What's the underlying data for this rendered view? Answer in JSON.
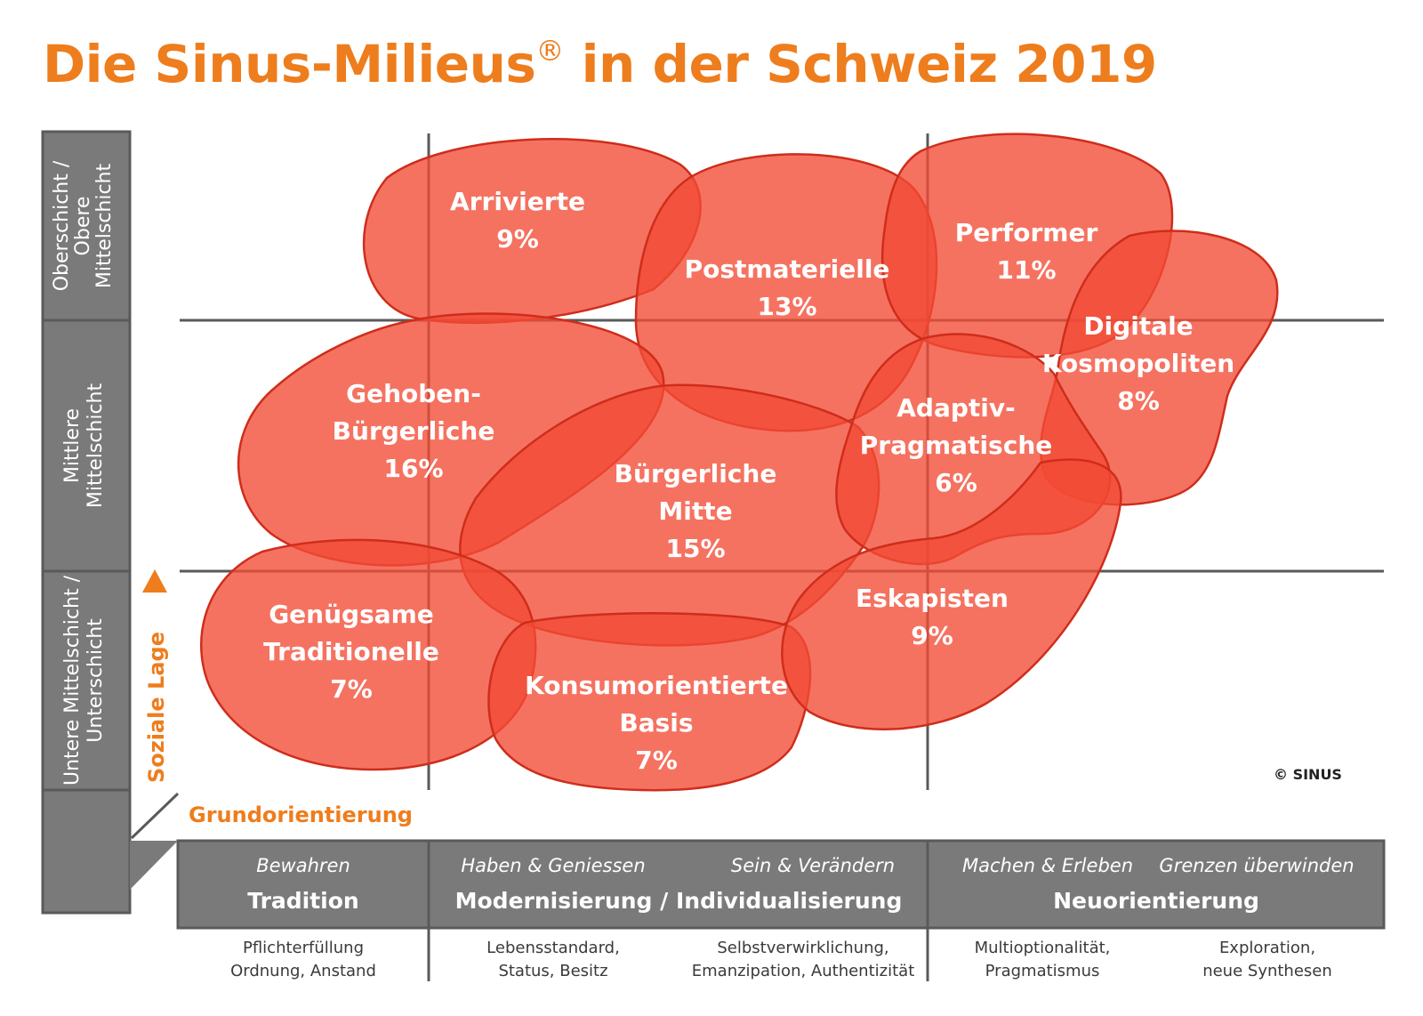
{
  "title": {
    "main": "Die Sinus-Milieus",
    "reg": "®",
    "rest": " in der Schweiz 2019"
  },
  "colors": {
    "accent": "#ee7d1d",
    "blob": "#f24a34",
    "panel": "#7a7a7a",
    "grid": "#5a5a5a"
  },
  "y_axis": {
    "label": "Soziale Lage",
    "levels": [
      {
        "lines": [
          "Oberschicht /",
          "Obere",
          "Mittelschicht"
        ]
      },
      {
        "lines": [
          "Mittlere",
          "Mittelschicht"
        ]
      },
      {
        "lines": [
          "Untere Mittelschicht /",
          "Unterschicht"
        ]
      }
    ]
  },
  "x_axis": {
    "label": "Grundorientierung",
    "sections": [
      {
        "name": "Tradition",
        "subs": [
          "Bewahren"
        ]
      },
      {
        "name": "Modernisierung / Individualisierung",
        "subs": [
          "Haben & Geniessen",
          "Sein & Verändern"
        ]
      },
      {
        "name": "Neuorientierung",
        "subs": [
          "Machen & Erleben",
          "Grenzen überwinden"
        ]
      }
    ],
    "values": [
      [
        "Pflichterfüllung",
        "Ordnung, Anstand"
      ],
      [
        "Lebensstandard,",
        "Status, Besitz"
      ],
      [
        "Selbstverwirklichung,",
        "Emanzipation, Authentizität"
      ],
      [
        "Multioptionalität,",
        "Pragmatismus"
      ],
      [
        "Exploration,",
        "neue Synthesen"
      ]
    ]
  },
  "milieus": [
    {
      "id": "arrivierte",
      "lines": [
        "Arrivierte"
      ],
      "share": "9%"
    },
    {
      "id": "postmaterielle",
      "lines": [
        "Postmaterielle"
      ],
      "share": "13%"
    },
    {
      "id": "performer",
      "lines": [
        "Performer"
      ],
      "share": "11%"
    },
    {
      "id": "digitale-kosmopoliten",
      "lines": [
        "Digitale",
        "Kosmopoliten"
      ],
      "share": "8%"
    },
    {
      "id": "gehoben-buergerliche",
      "lines": [
        "Gehoben-",
        "Bürgerliche"
      ],
      "share": "16%"
    },
    {
      "id": "buergerliche-mitte",
      "lines": [
        "Bürgerliche",
        "Mitte"
      ],
      "share": "15%"
    },
    {
      "id": "adaptiv-pragmatische",
      "lines": [
        "Adaptiv-",
        "Pragmatische"
      ],
      "share": "6%"
    },
    {
      "id": "genuegsame-traditionelle",
      "lines": [
        "Genügsame",
        "Traditionelle"
      ],
      "share": "7%"
    },
    {
      "id": "konsumorientierte-basis",
      "lines": [
        "Konsumorientierte",
        "Basis"
      ],
      "share": "7%"
    },
    {
      "id": "eskapisten",
      "lines": [
        "Eskapisten"
      ],
      "share": "9%"
    }
  ],
  "copyright": "© SINUS"
}
